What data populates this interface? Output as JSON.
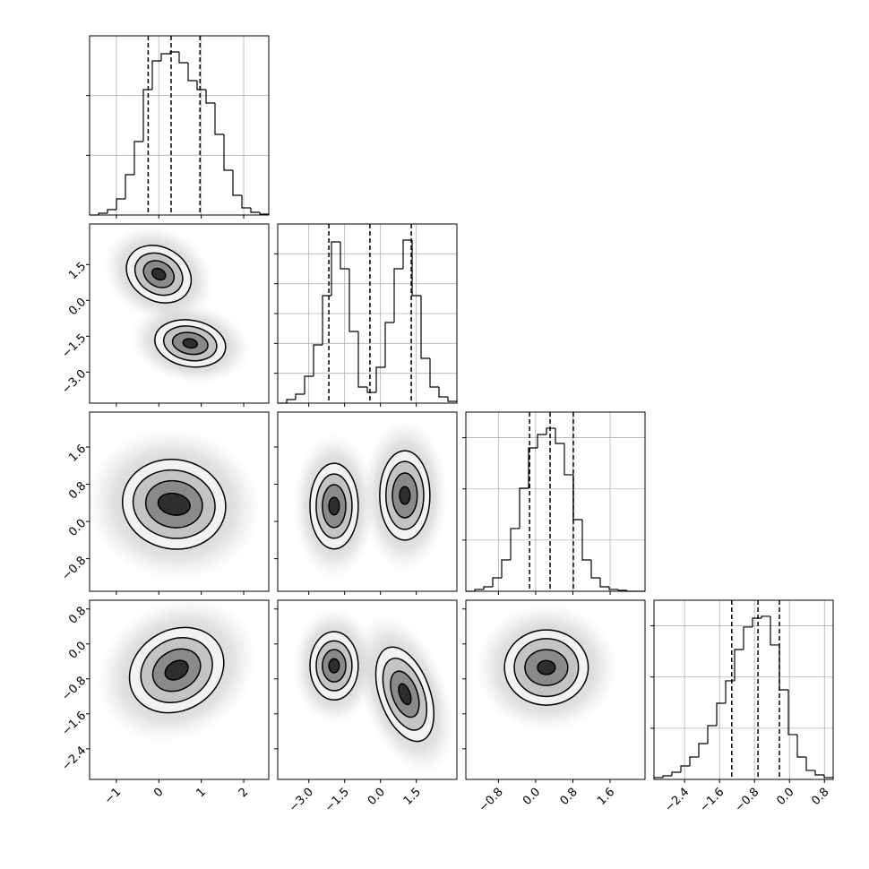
{
  "chart_data": {
    "type": "corner",
    "variables": [
      {
        "xlim": [
          -1.63,
          2.59
        ],
        "xticks": [
          {
            "value": -1,
            "label": "−1"
          },
          0,
          1,
          2
        ],
        "bins": [
          -1.63,
          -1.419,
          -1.208,
          -0.997,
          -0.786,
          -0.575,
          -0.364,
          -0.153,
          0.058,
          0.269,
          0.48,
          0.691,
          0.902,
          1.113,
          1.324,
          1.535,
          1.746,
          1.957,
          2.168,
          2.379,
          2.59
        ],
        "counts": [
          0,
          30,
          90,
          270,
          675,
          1230,
          2100,
          2580,
          2700,
          2730,
          2550,
          2250,
          2100,
          1875,
          1350,
          750,
          330,
          120,
          45,
          15
        ],
        "ylim": [
          0,
          3000
        ],
        "yticks": [
          1000,
          2000
        ],
        "quantiles": [
          -0.25,
          0.29,
          0.97
        ]
      },
      {
        "xlim": [
          -4.3,
          3.2
        ],
        "xticks": [
          {
            "value": -3,
            "label": "−3.0"
          },
          {
            "value": -1.5,
            "label": "−1.5"
          },
          {
            "value": 0,
            "label": "0.0"
          },
          1.5
        ],
        "bins": [
          -4.3,
          -3.925,
          -3.55,
          -3.175,
          -2.8,
          -2.425,
          -2.05,
          -1.675,
          -1.3,
          -0.925,
          -0.55,
          -0.175,
          0.2,
          0.575,
          0.95,
          1.325,
          1.7,
          2.075,
          2.45,
          2.825,
          3.2
        ],
        "counts": [
          0,
          24,
          60,
          180,
          390,
          720,
          1080,
          900,
          480,
          108,
          72,
          240,
          540,
          900,
          1092,
          720,
          300,
          108,
          42,
          12
        ],
        "ylim": [
          0,
          1200
        ],
        "yticks": [
          200,
          400,
          600,
          800,
          1000
        ],
        "quantiles": [
          -2.16,
          -0.44,
          1.29
        ]
      },
      {
        "xlim": [
          -1.5,
          2.35
        ],
        "xticks": [
          {
            "value": -0.8,
            "label": "−0.8"
          },
          {
            "value": 0,
            "label": "0.0"
          },
          0.8,
          1.6
        ],
        "bins": [
          -1.5,
          -1.3075,
          -1.115,
          -0.9225,
          -0.73,
          -0.5375,
          -0.345,
          -0.1525,
          0.04,
          0.2325,
          0.425,
          0.6175,
          0.81,
          1.0025,
          1.195,
          1.3875,
          1.58,
          1.7725,
          1.965,
          2.1575,
          2.35
        ],
        "counts": [
          0,
          18,
          44,
          131,
          306,
          613,
          1006,
          1400,
          1531,
          1593,
          1444,
          1138,
          700,
          306,
          131,
          44,
          18,
          9,
          0,
          0
        ],
        "ylim": [
          0,
          1750
        ],
        "yticks": [
          500,
          1000,
          1500
        ],
        "quantiles": [
          -0.13,
          0.31,
          0.81
        ]
      },
      {
        "xlim": [
          -3.1,
          1.0
        ],
        "xticks": [
          {
            "value": -2.4,
            "label": "−2.4"
          },
          {
            "value": -1.6,
            "label": "−1.6"
          },
          {
            "value": -0.8,
            "label": "−0.8"
          },
          {
            "value": 0,
            "label": "0.0"
          },
          0.8
        ],
        "bins": [
          -3.1,
          -2.895,
          -2.69,
          -2.485,
          -2.28,
          -2.075,
          -1.87,
          -1.665,
          -1.46,
          -1.255,
          -1.05,
          -0.845,
          -0.64,
          -0.435,
          -0.23,
          -0.025,
          0.18,
          0.385,
          0.59,
          0.795,
          1.0
        ],
        "counts": [
          18,
          35,
          70,
          131,
          219,
          350,
          525,
          744,
          963,
          1269,
          1488,
          1575,
          1593,
          1313,
          875,
          438,
          219,
          88,
          44,
          18
        ],
        "ylim": [
          0,
          1750
        ],
        "yticks": [
          500,
          1000,
          1500
        ],
        "quantiles": [
          -1.32,
          -0.72,
          -0.23
        ]
      }
    ],
    "pairs": [
      {
        "x": 0,
        "y": 1,
        "blobs": [
          {
            "cx": 0,
            "cy": 1.1,
            "rx": [
              0.8,
              0.59,
              0.38,
              0.17
            ],
            "ry": [
              1.12,
              0.82,
              0.52,
              0.22
            ],
            "rotation": 30
          },
          {
            "cx": 0.74,
            "cy": -1.8,
            "rx": [
              0.84,
              0.63,
              0.42,
              0.17
            ],
            "ry": [
              0.97,
              0.71,
              0.45,
              0.19
            ],
            "rotation": 10
          }
        ]
      },
      {
        "x": 0,
        "y": 2,
        "blobs": [
          {
            "cx": 0.36,
            "cy": 0.37,
            "rx": [
              1.22,
              0.97,
              0.67,
              0.38
            ],
            "ry": [
              0.96,
              0.73,
              0.5,
              0.23
            ],
            "rotation": 10
          }
        ]
      },
      {
        "x": 1,
        "y": 2,
        "blobs": [
          {
            "cx": -1.94,
            "cy": 0.33,
            "rx": [
              1.01,
              0.75,
              0.49,
              0.22
            ],
            "ry": [
              0.92,
              0.69,
              0.46,
              0.19
            ],
            "rotation": 0
          },
          {
            "cx": 1.02,
            "cy": 0.56,
            "rx": [
              1.05,
              0.79,
              0.52,
              0.22
            ],
            "ry": [
              0.96,
              0.73,
              0.48,
              0.19
            ],
            "rotation": 0
          }
        ]
      },
      {
        "x": 0,
        "y": 3,
        "blobs": [
          {
            "cx": 0.42,
            "cy": -0.6,
            "rx": [
              1.16,
              0.88,
              0.59,
              0.29
            ],
            "ry": [
              0.92,
              0.7,
              0.45,
              0.2
            ],
            "rotation": -30
          }
        ]
      },
      {
        "x": 1,
        "y": 3,
        "blobs": [
          {
            "cx": -1.94,
            "cy": -0.5,
            "rx": [
              1.01,
              0.75,
              0.49,
              0.22
            ],
            "ry": [
              0.78,
              0.57,
              0.37,
              0.16
            ],
            "rotation": 0
          },
          {
            "cx": 1.02,
            "cy": -1.15,
            "rx": [
              1.05,
              0.79,
              0.52,
              0.22
            ],
            "ry": [
              1.13,
              0.86,
              0.55,
              0.25
            ],
            "rotation": -20
          }
        ]
      },
      {
        "x": 2,
        "y": 3,
        "blobs": [
          {
            "cx": 0.23,
            "cy": -0.54,
            "rx": [
              0.9,
              0.69,
              0.46,
              0.19
            ],
            "ry": [
              0.86,
              0.66,
              0.41,
              0.16
            ],
            "rotation": 0
          }
        ]
      }
    ]
  }
}
